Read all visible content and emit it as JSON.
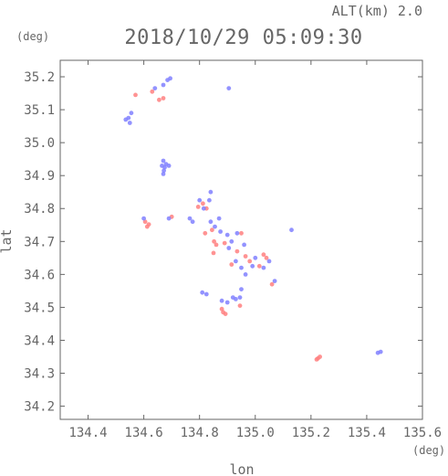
{
  "header": {
    "altitude_label": "ALT(km) 2.0",
    "timestamp": "2018/10/29 05:09:30"
  },
  "chart_data": {
    "type": "scatter",
    "xlabel": "lon",
    "ylabel": "lat",
    "x_unit": "(deg)",
    "y_unit": "(deg)",
    "xlim": [
      134.3,
      135.6
    ],
    "ylim": [
      34.16,
      35.25
    ],
    "x_ticks": [
      "134.4",
      "134.6",
      "134.8",
      "135.0",
      "135.2",
      "135.4",
      "135.6"
    ],
    "y_ticks": [
      "34.2",
      "34.3",
      "34.4",
      "34.5",
      "34.6",
      "34.7",
      "34.8",
      "34.9",
      "35.0",
      "35.1",
      "35.2"
    ],
    "grid": false,
    "colors": {
      "positive": "#ff8080",
      "negative": "#8080ff",
      "axis": "#666666"
    },
    "series": [
      {
        "values": [
          [
            134.63,
            35.155
          ],
          [
            134.655,
            35.13
          ],
          [
            134.67,
            35.135
          ],
          [
            134.57,
            35.145
          ],
          [
            134.605,
            34.76
          ],
          [
            134.618,
            34.752
          ],
          [
            134.612,
            34.745
          ],
          [
            134.7,
            34.775
          ],
          [
            134.795,
            34.805
          ],
          [
            134.812,
            34.815
          ],
          [
            134.825,
            34.8
          ],
          [
            134.82,
            34.725
          ],
          [
            134.845,
            34.735
          ],
          [
            134.852,
            34.7
          ],
          [
            134.86,
            34.69
          ],
          [
            134.89,
            34.695
          ],
          [
            134.95,
            34.725
          ],
          [
            134.935,
            34.67
          ],
          [
            134.965,
            34.655
          ],
          [
            134.98,
            34.64
          ],
          [
            135.015,
            34.625
          ],
          [
            135.03,
            34.66
          ],
          [
            135.06,
            34.57
          ],
          [
            135.04,
            34.65
          ],
          [
            134.88,
            34.495
          ],
          [
            134.885,
            34.485
          ],
          [
            134.893,
            34.48
          ],
          [
            134.945,
            34.505
          ],
          [
            134.85,
            34.665
          ],
          [
            134.915,
            34.63
          ],
          [
            135.225,
            34.345
          ],
          [
            135.232,
            34.35
          ],
          [
            135.22,
            34.342
          ]
        ]
      },
      {
        "values": [
          [
            134.685,
            35.19
          ],
          [
            134.695,
            35.195
          ],
          [
            134.67,
            35.175
          ],
          [
            134.64,
            35.165
          ],
          [
            134.905,
            35.165
          ],
          [
            134.545,
            35.075
          ],
          [
            134.555,
            35.09
          ],
          [
            134.535,
            35.07
          ],
          [
            134.55,
            35.06
          ],
          [
            134.67,
            34.945
          ],
          [
            134.68,
            34.935
          ],
          [
            134.675,
            34.925
          ],
          [
            134.69,
            34.93
          ],
          [
            134.665,
            34.93
          ],
          [
            134.672,
            34.915
          ],
          [
            134.67,
            34.905
          ],
          [
            134.84,
            34.85
          ],
          [
            134.835,
            34.825
          ],
          [
            134.815,
            34.8
          ],
          [
            134.765,
            34.77
          ],
          [
            134.775,
            34.76
          ],
          [
            134.69,
            34.77
          ],
          [
            134.84,
            34.76
          ],
          [
            134.87,
            34.77
          ],
          [
            134.855,
            34.745
          ],
          [
            134.875,
            34.73
          ],
          [
            134.9,
            34.72
          ],
          [
            134.915,
            34.7
          ],
          [
            134.935,
            34.725
          ],
          [
            134.905,
            34.68
          ],
          [
            134.93,
            34.64
          ],
          [
            134.95,
            34.62
          ],
          [
            134.965,
            34.6
          ],
          [
            134.99,
            34.625
          ],
          [
            135.0,
            34.65
          ],
          [
            135.03,
            34.62
          ],
          [
            135.05,
            34.64
          ],
          [
            135.07,
            34.58
          ],
          [
            134.95,
            34.555
          ],
          [
            134.945,
            34.53
          ],
          [
            134.93,
            34.525
          ],
          [
            134.9,
            34.515
          ],
          [
            134.88,
            34.52
          ],
          [
            134.92,
            34.53
          ],
          [
            134.825,
            34.54
          ],
          [
            134.81,
            34.545
          ],
          [
            135.13,
            34.735
          ],
          [
            135.44,
            34.362
          ],
          [
            135.45,
            34.365
          ],
          [
            134.6,
            34.77
          ],
          [
            134.8,
            34.825
          ],
          [
            134.96,
            34.69
          ]
        ]
      }
    ]
  }
}
